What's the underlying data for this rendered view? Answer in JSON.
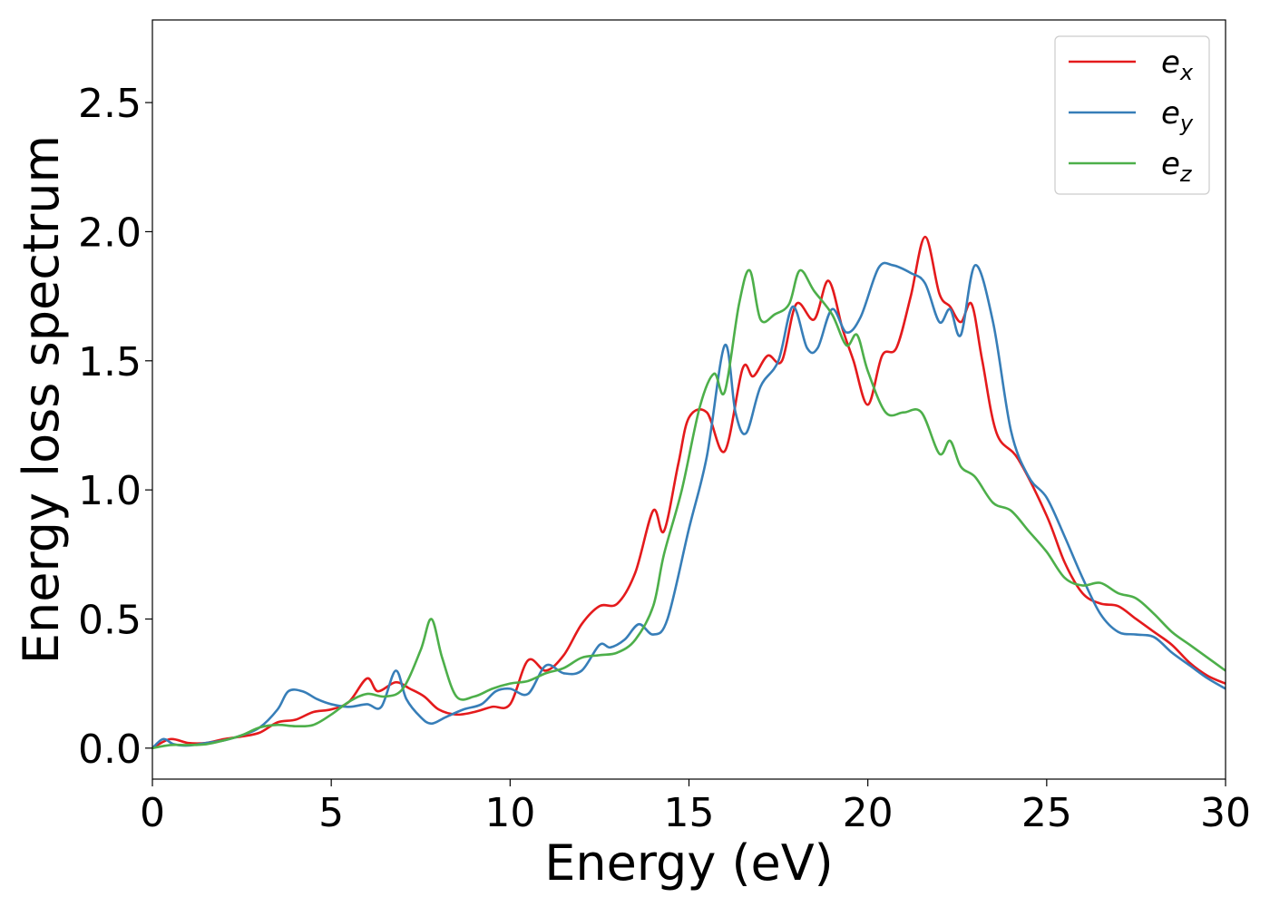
{
  "chart_data": {
    "type": "line",
    "title": "",
    "xlabel": "Energy (eV)",
    "ylabel": "Energy loss spectrum",
    "xlim": [
      0,
      30
    ],
    "ylim": [
      -0.12,
      2.82
    ],
    "xticks": [
      0,
      5,
      10,
      15,
      20,
      25,
      30
    ],
    "xtick_labels": [
      "0",
      "5",
      "10",
      "15",
      "20",
      "25",
      "30"
    ],
    "yticks": [
      0.0,
      0.5,
      1.0,
      1.5,
      2.0,
      2.5
    ],
    "ytick_labels": [
      "0.0",
      "0.5",
      "1.0",
      "1.5",
      "2.0",
      "2.5"
    ],
    "grid": false,
    "legend_position": "top-right",
    "series": [
      {
        "name": "e_x",
        "label_base": "e",
        "label_sub": "x",
        "color": "#e41a1c",
        "points": [
          [
            0,
            0
          ],
          [
            0.5,
            0.035
          ],
          [
            1,
            0.02
          ],
          [
            1.5,
            0.02
          ],
          [
            2,
            0.035
          ],
          [
            2.5,
            0.045
          ],
          [
            3,
            0.06
          ],
          [
            3.5,
            0.1
          ],
          [
            4,
            0.11
          ],
          [
            4.5,
            0.14
          ],
          [
            5,
            0.15
          ],
          [
            5.5,
            0.18
          ],
          [
            6,
            0.27
          ],
          [
            6.3,
            0.22
          ],
          [
            6.8,
            0.255
          ],
          [
            7.2,
            0.23
          ],
          [
            7.6,
            0.2
          ],
          [
            8,
            0.15
          ],
          [
            8.5,
            0.13
          ],
          [
            9,
            0.14
          ],
          [
            9.5,
            0.16
          ],
          [
            10,
            0.17
          ],
          [
            10.5,
            0.34
          ],
          [
            11,
            0.3
          ],
          [
            11.5,
            0.36
          ],
          [
            12,
            0.48
          ],
          [
            12.5,
            0.55
          ],
          [
            13,
            0.56
          ],
          [
            13.5,
            0.68
          ],
          [
            14,
            0.92
          ],
          [
            14.3,
            0.84
          ],
          [
            14.7,
            1.1
          ],
          [
            15,
            1.28
          ],
          [
            15.5,
            1.3
          ],
          [
            16,
            1.15
          ],
          [
            16.5,
            1.47
          ],
          [
            16.8,
            1.44
          ],
          [
            17.2,
            1.52
          ],
          [
            17.6,
            1.5
          ],
          [
            18,
            1.72
          ],
          [
            18.5,
            1.66
          ],
          [
            18.9,
            1.81
          ],
          [
            19.3,
            1.62
          ],
          [
            19.6,
            1.5
          ],
          [
            20,
            1.33
          ],
          [
            20.4,
            1.52
          ],
          [
            20.8,
            1.55
          ],
          [
            21.2,
            1.75
          ],
          [
            21.6,
            1.98
          ],
          [
            22,
            1.76
          ],
          [
            22.3,
            1.71
          ],
          [
            22.6,
            1.65
          ],
          [
            22.9,
            1.72
          ],
          [
            23.2,
            1.5
          ],
          [
            23.6,
            1.22
          ],
          [
            24.2,
            1.12
          ],
          [
            25,
            0.9
          ],
          [
            25.5,
            0.72
          ],
          [
            26,
            0.6
          ],
          [
            26.5,
            0.56
          ],
          [
            27,
            0.55
          ],
          [
            27.5,
            0.5
          ],
          [
            28,
            0.45
          ],
          [
            28.5,
            0.4
          ],
          [
            29,
            0.33
          ],
          [
            29.5,
            0.28
          ],
          [
            30,
            0.25
          ]
        ]
      },
      {
        "name": "e_y",
        "label_base": "e",
        "label_sub": "y",
        "color": "#377eb8",
        "points": [
          [
            0,
            0
          ],
          [
            0.3,
            0.035
          ],
          [
            0.6,
            0.015
          ],
          [
            1,
            0.01
          ],
          [
            1.5,
            0.02
          ],
          [
            2,
            0.03
          ],
          [
            2.5,
            0.05
          ],
          [
            3,
            0.08
          ],
          [
            3.5,
            0.15
          ],
          [
            3.8,
            0.22
          ],
          [
            4.2,
            0.22
          ],
          [
            4.6,
            0.19
          ],
          [
            5,
            0.17
          ],
          [
            5.5,
            0.16
          ],
          [
            6,
            0.17
          ],
          [
            6.4,
            0.16
          ],
          [
            6.8,
            0.3
          ],
          [
            7.1,
            0.19
          ],
          [
            7.5,
            0.12
          ],
          [
            7.8,
            0.095
          ],
          [
            8.2,
            0.12
          ],
          [
            8.7,
            0.15
          ],
          [
            9.2,
            0.17
          ],
          [
            9.6,
            0.22
          ],
          [
            10,
            0.23
          ],
          [
            10.5,
            0.21
          ],
          [
            11,
            0.32
          ],
          [
            11.5,
            0.29
          ],
          [
            12,
            0.3
          ],
          [
            12.5,
            0.4
          ],
          [
            12.8,
            0.39
          ],
          [
            13.2,
            0.42
          ],
          [
            13.6,
            0.48
          ],
          [
            14,
            0.44
          ],
          [
            14.4,
            0.5
          ],
          [
            15,
            0.85
          ],
          [
            15.5,
            1.13
          ],
          [
            16,
            1.56
          ],
          [
            16.3,
            1.3
          ],
          [
            16.6,
            1.22
          ],
          [
            17,
            1.4
          ],
          [
            17.5,
            1.5
          ],
          [
            17.9,
            1.71
          ],
          [
            18.3,
            1.55
          ],
          [
            18.6,
            1.55
          ],
          [
            19,
            1.7
          ],
          [
            19.4,
            1.61
          ],
          [
            19.8,
            1.67
          ],
          [
            20.3,
            1.86
          ],
          [
            20.7,
            1.87
          ],
          [
            21.2,
            1.84
          ],
          [
            21.6,
            1.8
          ],
          [
            22,
            1.65
          ],
          [
            22.3,
            1.7
          ],
          [
            22.6,
            1.6
          ],
          [
            23,
            1.87
          ],
          [
            23.5,
            1.65
          ],
          [
            24,
            1.23
          ],
          [
            24.5,
            1.05
          ],
          [
            25,
            0.97
          ],
          [
            25.5,
            0.82
          ],
          [
            26,
            0.66
          ],
          [
            26.5,
            0.52
          ],
          [
            27,
            0.45
          ],
          [
            27.5,
            0.44
          ],
          [
            28,
            0.43
          ],
          [
            28.5,
            0.37
          ],
          [
            29,
            0.32
          ],
          [
            29.5,
            0.27
          ],
          [
            30,
            0.23
          ]
        ]
      },
      {
        "name": "e_z",
        "label_base": "e",
        "label_sub": "z",
        "color": "#4daf4a",
        "points": [
          [
            0,
            0
          ],
          [
            0.5,
            0.012
          ],
          [
            1,
            0.012
          ],
          [
            1.5,
            0.015
          ],
          [
            2,
            0.03
          ],
          [
            2.5,
            0.05
          ],
          [
            3,
            0.08
          ],
          [
            3.5,
            0.09
          ],
          [
            4,
            0.085
          ],
          [
            4.5,
            0.09
          ],
          [
            5,
            0.13
          ],
          [
            5.5,
            0.18
          ],
          [
            6,
            0.21
          ],
          [
            6.5,
            0.2
          ],
          [
            7,
            0.23
          ],
          [
            7.5,
            0.38
          ],
          [
            7.8,
            0.5
          ],
          [
            8.1,
            0.35
          ],
          [
            8.5,
            0.2
          ],
          [
            9,
            0.2
          ],
          [
            9.5,
            0.23
          ],
          [
            10,
            0.25
          ],
          [
            10.5,
            0.26
          ],
          [
            11,
            0.29
          ],
          [
            11.5,
            0.31
          ],
          [
            12,
            0.35
          ],
          [
            12.5,
            0.36
          ],
          [
            13,
            0.37
          ],
          [
            13.5,
            0.42
          ],
          [
            14,
            0.55
          ],
          [
            14.3,
            0.75
          ],
          [
            14.8,
            1.0
          ],
          [
            15.3,
            1.32
          ],
          [
            15.7,
            1.45
          ],
          [
            16,
            1.38
          ],
          [
            16.4,
            1.72
          ],
          [
            16.7,
            1.85
          ],
          [
            17,
            1.66
          ],
          [
            17.4,
            1.68
          ],
          [
            17.8,
            1.72
          ],
          [
            18.1,
            1.85
          ],
          [
            18.5,
            1.77
          ],
          [
            19,
            1.68
          ],
          [
            19.4,
            1.56
          ],
          [
            19.7,
            1.6
          ],
          [
            20,
            1.46
          ],
          [
            20.5,
            1.3
          ],
          [
            21,
            1.3
          ],
          [
            21.5,
            1.3
          ],
          [
            22,
            1.14
          ],
          [
            22.3,
            1.19
          ],
          [
            22.6,
            1.09
          ],
          [
            23,
            1.05
          ],
          [
            23.5,
            0.95
          ],
          [
            24,
            0.92
          ],
          [
            24.5,
            0.84
          ],
          [
            25,
            0.76
          ],
          [
            25.5,
            0.66
          ],
          [
            26,
            0.63
          ],
          [
            26.5,
            0.64
          ],
          [
            27,
            0.6
          ],
          [
            27.5,
            0.58
          ],
          [
            28,
            0.52
          ],
          [
            28.5,
            0.45
          ],
          [
            29,
            0.4
          ],
          [
            29.5,
            0.35
          ],
          [
            30,
            0.3
          ]
        ]
      }
    ]
  }
}
